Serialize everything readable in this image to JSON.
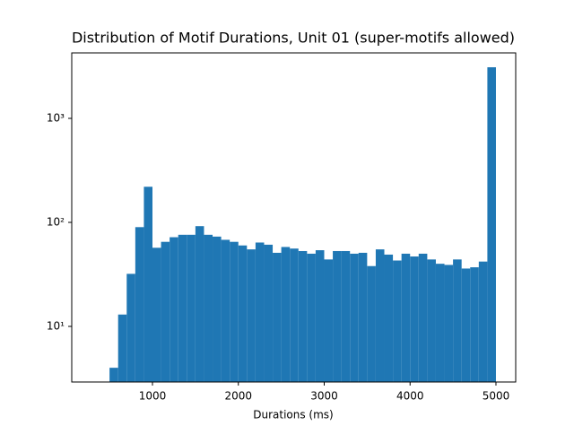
{
  "chart_data": {
    "type": "histogram",
    "title": "Distribution of Motif Durations, Unit 01 (super-motifs allowed)",
    "x_label": "Durations (ms)",
    "bins": [
      300,
      400,
      500,
      600,
      700,
      800,
      900,
      1000,
      1100,
      1200,
      1300,
      1400,
      1500,
      1600,
      1700,
      1800,
      1900,
      2000,
      2100,
      2200,
      2300,
      2400,
      2500,
      2600,
      2700,
      2800,
      2900,
      3000,
      3100,
      3200,
      3300,
      3400,
      3500,
      3600,
      3700,
      3800,
      3900,
      4000,
      4100,
      4200,
      4300,
      4400,
      4500,
      4600,
      4700,
      4800,
      4900,
      5000
    ],
    "values": [
      0,
      0,
      4,
      13,
      32,
      90,
      220,
      57,
      65,
      72,
      76,
      76,
      92,
      76,
      73,
      68,
      65,
      60,
      55,
      64,
      61,
      51,
      58,
      56,
      53,
      50,
      54,
      44,
      53,
      53,
      50,
      51,
      38,
      55,
      49,
      43,
      50,
      47,
      50,
      44,
      40,
      39,
      44,
      36,
      37,
      42,
      3100
    ],
    "color": "#1f77b4",
    "xlim": [
      60,
      5230
    ],
    "xticks": [
      1000,
      2000,
      3000,
      4000,
      5000
    ],
    "ylim": [
      2.92,
      4260
    ],
    "log_y": true,
    "yticks": [
      {
        "value": 10,
        "label": "10¹"
      },
      {
        "value": 100,
        "label": "10²"
      },
      {
        "value": 1000,
        "label": "10³"
      }
    ]
  }
}
